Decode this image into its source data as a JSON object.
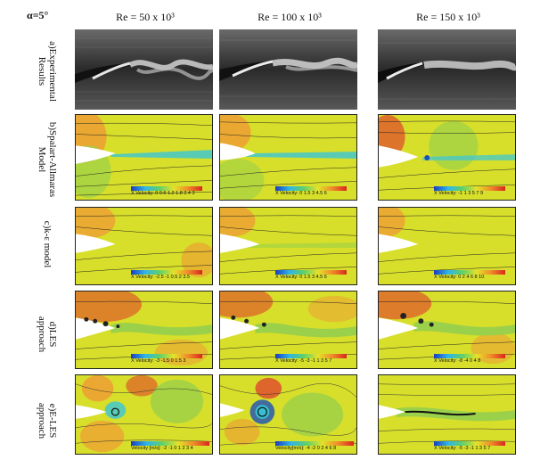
{
  "figure": {
    "alpha_label": "α=5°",
    "columns": [
      "Re = 50 x 10³",
      "Re = 100 x 10³",
      "Re = 150 x 10³"
    ],
    "rows": [
      {
        "label_line1": "a)Experimental",
        "label_line2": "Results"
      },
      {
        "label_line1": "b)Spalart-Allmaras",
        "label_line2": "Model"
      },
      {
        "label_line1": "c)k-ε model",
        "label_line2": ""
      },
      {
        "label_line1": "d)LES",
        "label_line2": "approach"
      },
      {
        "label_line1": "e)E-LES",
        "label_line2": "approach"
      }
    ],
    "legends": {
      "b": [
        "X Velocity: 0 0.6 1.2 1.8 2.4 3",
        "X Velocity: 0 1.5 3 4.5 6",
        "X Velocity: -1 1 3 5 7 9"
      ],
      "c": [
        "X Velocity: -2.5 -1 0.5 2 3.5",
        "X Velocity: 0 1.5 3 4.5 6",
        "X Velocity: 0 2 4 6 8 10"
      ],
      "d": [
        "X Velocity: -3 -1.5 0 1.5 3",
        "X Velocity: -5 -3 -1 1 3 5 7",
        "X Velocity: -8 -4 0 4 8"
      ],
      "e": [
        "Velocity [m/s]: -2 -1 0 1 2 3 4",
        "Velocity[m/s]: -4 -2 0 2 4 6 8",
        "X Velocity: -5 -3 -1 1 3 5 7"
      ]
    }
  },
  "colors": {
    "field_yellow": "#d7df2a",
    "field_green": "#9bd04a",
    "field_orange": "#ef9a34",
    "field_red": "#e0462c",
    "wake_cyan": "#39c6d8",
    "wake_blue": "#1b4fb8"
  }
}
